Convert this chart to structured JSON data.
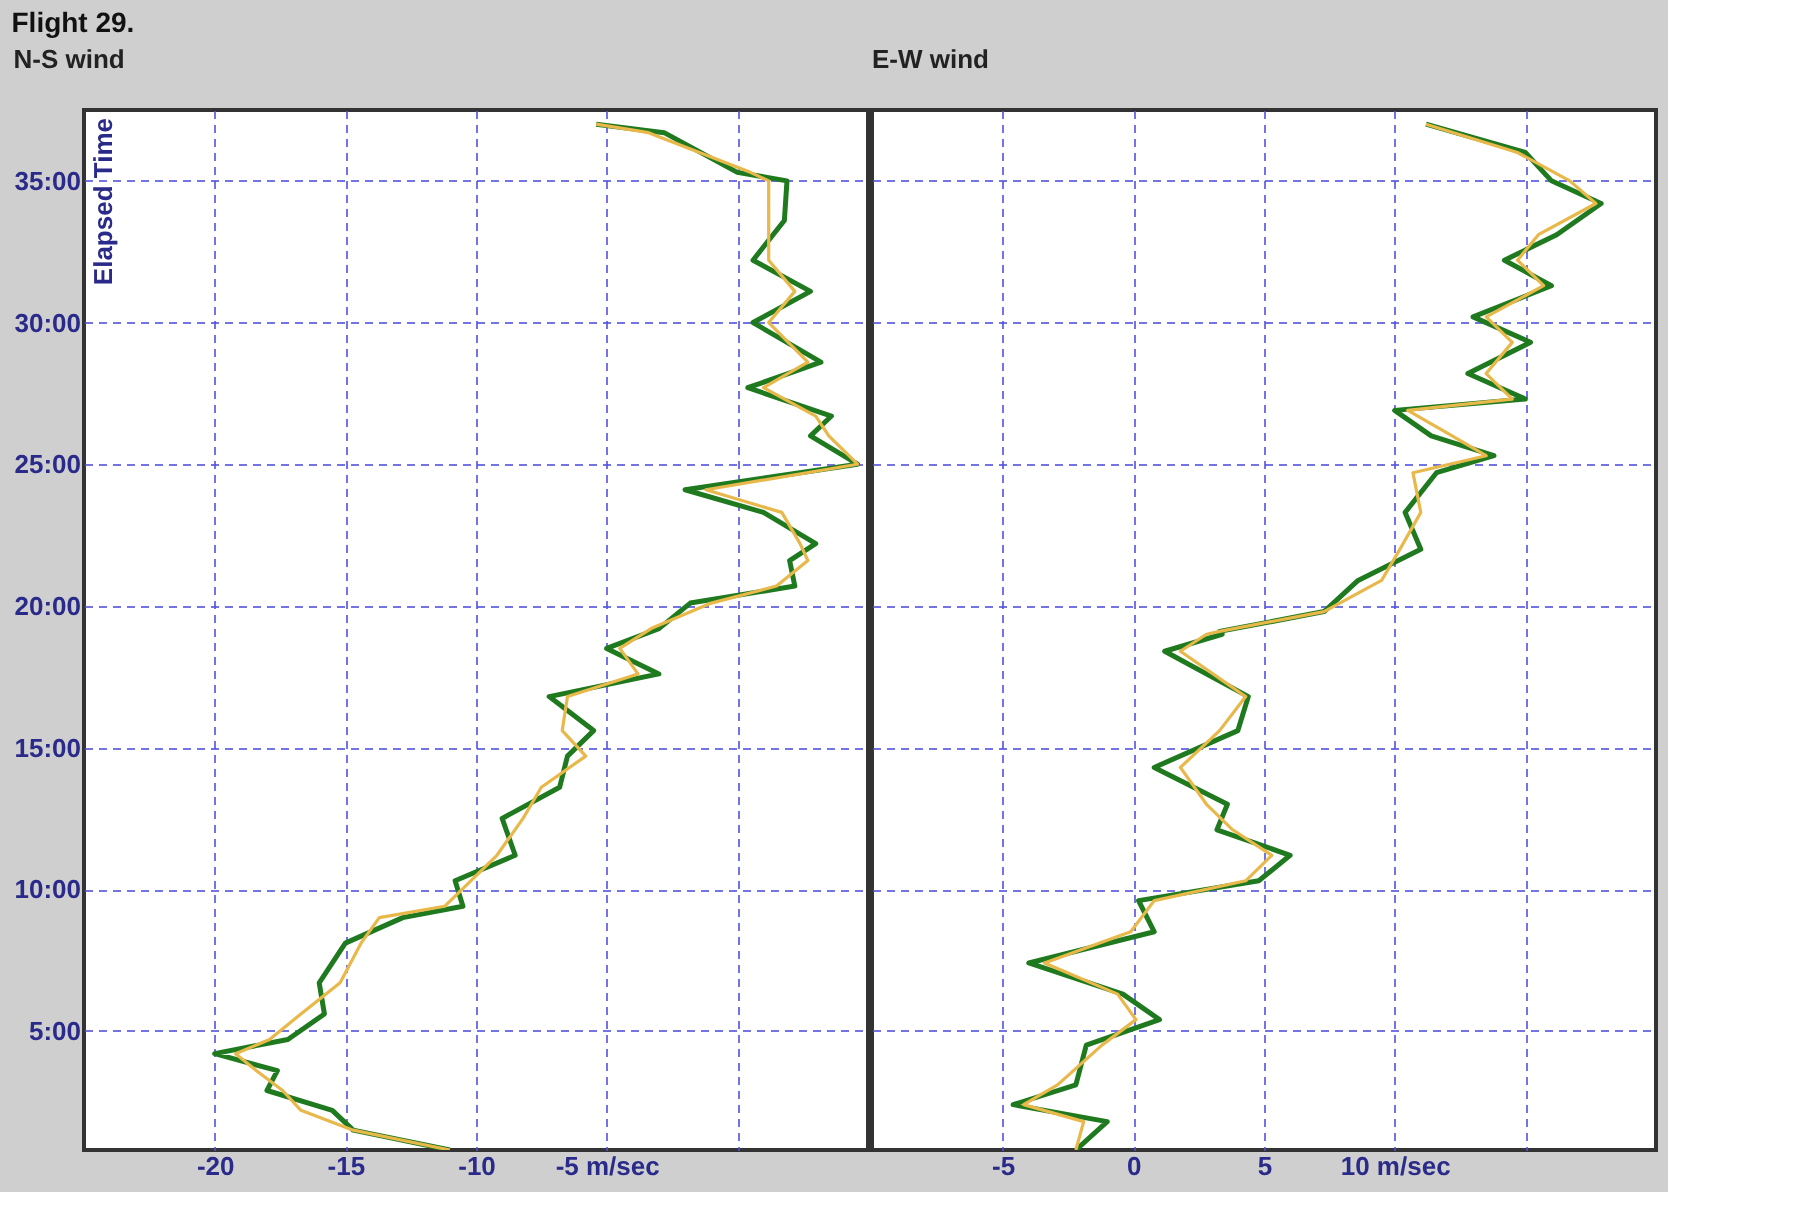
{
  "chart_data": [
    {
      "type": "line",
      "title": "N-S wind",
      "ylabel": "Elapsed Time",
      "annotations": [
        "Flight 29."
      ],
      "grid": true,
      "marker": "none",
      "line_style": "solid",
      "xlim": [
        -25,
        5
      ],
      "xticks": [
        -20,
        -15,
        -10,
        {
          "value": -5,
          "label": "-5 m/sec"
        },
        {
          "value": 0,
          "label": null
        }
      ],
      "ylim": [
        0.8,
        37.5
      ],
      "yticks": [
        {
          "value": 5,
          "label": "5:00"
        },
        {
          "value": 10,
          "label": "10:00"
        },
        {
          "value": 15,
          "label": "15:00"
        },
        {
          "value": 20,
          "label": "20:00"
        },
        {
          "value": 25,
          "label": "25:00"
        },
        {
          "value": 30,
          "label": "30:00"
        },
        {
          "value": 35,
          "label": "35:00"
        }
      ],
      "series": [
        {
          "color": "#1f7a1f",
          "values": [
            0.8,
            1.5,
            2.2,
            2.9,
            3.6,
            4.2,
            4.7,
            5.6,
            6.7,
            8.1,
            9.0,
            9.4,
            10.3,
            11.2,
            12.5,
            13.6,
            14.7,
            15.6,
            16.8,
            17.6,
            18.5,
            19.2,
            20.1,
            20.7,
            21.6,
            22.2,
            23.3,
            24.1,
            25.0,
            26.0,
            26.7,
            27.7,
            28.6,
            30.0,
            31.1,
            32.2,
            33.6,
            35.0,
            35.3,
            36.7,
            37.0
          ],
          "x": [
            -11.0,
            -14.7,
            -15.5,
            -18.0,
            -17.6,
            -20.0,
            -17.2,
            -15.8,
            -16.0,
            -15.0,
            -12.8,
            -10.5,
            -10.8,
            -8.5,
            -9.0,
            -6.8,
            -6.5,
            -5.5,
            -7.2,
            -3.0,
            -5.0,
            -3.0,
            -1.8,
            2.2,
            2.0,
            3.0,
            1.0,
            -2.0,
            4.6,
            2.8,
            3.6,
            0.4,
            3.2,
            0.6,
            2.8,
            0.6,
            1.8,
            1.9,
            0.0,
            -2.8,
            -5.4
          ]
        },
        {
          "color": "#e8b84a",
          "values": [
            0.8,
            1.5,
            2.2,
            2.9,
            3.6,
            4.2,
            4.7,
            5.6,
            6.7,
            8.1,
            9.0,
            9.4,
            10.3,
            11.2,
            12.5,
            13.6,
            14.7,
            15.6,
            16.8,
            17.6,
            18.5,
            19.2,
            20.1,
            20.7,
            21.6,
            22.2,
            23.3,
            24.1,
            25.0,
            26.0,
            26.7,
            27.7,
            28.6,
            30.0,
            31.1,
            32.2,
            33.6,
            35.0,
            35.3,
            36.7,
            37.0
          ],
          "x": [
            -11.0,
            -14.7,
            -16.7,
            -17.4,
            -18.4,
            -19.2,
            -17.9,
            -16.7,
            -15.2,
            -14.4,
            -13.7,
            -11.2,
            -10.2,
            -9.2,
            -8.2,
            -7.5,
            -5.8,
            -6.7,
            -6.5,
            -3.8,
            -4.5,
            -3.3,
            -1.0,
            1.5,
            2.7,
            2.4,
            1.7,
            -1.2,
            4.6,
            3.5,
            3.0,
            1.0,
            2.7,
            1.2,
            2.2,
            1.2,
            1.2,
            1.2,
            0.5,
            -3.4,
            -5.4
          ]
        }
      ]
    },
    {
      "type": "line",
      "title": "E-W wind",
      "grid": true,
      "marker": "none",
      "line_style": "solid",
      "tick_labels": "x",
      "xlim": [
        -10,
        20
      ],
      "xticks": [
        -5,
        0,
        5,
        {
          "value": 10,
          "label": "10 m/sec"
        },
        {
          "value": 15,
          "label": null
        }
      ],
      "ylim": [
        0.8,
        37.5
      ],
      "yticks": [
        5,
        10,
        15,
        20,
        25,
        30,
        35
      ],
      "series": [
        {
          "color": "#1f7a1f",
          "values": [
            0.8,
            1.8,
            2.4,
            3.1,
            4.5,
            5.4,
            6.3,
            7.4,
            8.5,
            9.6,
            10.3,
            11.2,
            12.1,
            13.0,
            14.3,
            15.6,
            16.8,
            18.4,
            19.0,
            19.1,
            19.8,
            20.9,
            22.0,
            23.3,
            24.7,
            25.3,
            26.0,
            26.9,
            27.3,
            28.2,
            29.3,
            30.2,
            31.3,
            32.2,
            33.1,
            34.2,
            35.0,
            36.0,
            37.0
          ],
          "x": [
            -2.2,
            -1.0,
            -4.6,
            -2.2,
            -1.8,
            1.0,
            -0.4,
            -4.0,
            0.8,
            0.2,
            4.8,
            6.0,
            3.2,
            3.6,
            0.8,
            4.0,
            4.4,
            1.2,
            3.4,
            3.3,
            7.3,
            8.6,
            11.0,
            10.4,
            11.6,
            13.8,
            11.4,
            10.0,
            15.0,
            12.8,
            15.2,
            13.0,
            16.0,
            14.2,
            16.2,
            17.9,
            16.0,
            15.0,
            11.2
          ]
        },
        {
          "color": "#e8b84a",
          "values": [
            0.8,
            1.8,
            2.4,
            3.1,
            4.5,
            5.4,
            6.3,
            7.4,
            8.5,
            9.6,
            10.3,
            11.2,
            12.1,
            13.0,
            14.3,
            15.6,
            16.8,
            18.4,
            19.0,
            19.1,
            19.8,
            20.9,
            22.0,
            23.3,
            24.7,
            25.3,
            26.0,
            26.9,
            27.3,
            28.2,
            29.3,
            30.2,
            31.3,
            32.2,
            33.1,
            34.2,
            35.0,
            36.0,
            37.0
          ],
          "x": [
            -2.2,
            -1.9,
            -4.2,
            -2.9,
            -1.2,
            0.1,
            -0.6,
            -3.4,
            -0.1,
            0.8,
            4.3,
            5.3,
            3.8,
            2.8,
            1.8,
            3.3,
            4.3,
            1.8,
            2.8,
            3.3,
            7.3,
            9.5,
            10.2,
            11.0,
            10.7,
            13.5,
            12.2,
            10.5,
            14.5,
            13.5,
            14.5,
            13.5,
            15.7,
            14.7,
            15.5,
            17.7,
            16.7,
            14.7,
            11.2
          ]
        }
      ]
    }
  ]
}
